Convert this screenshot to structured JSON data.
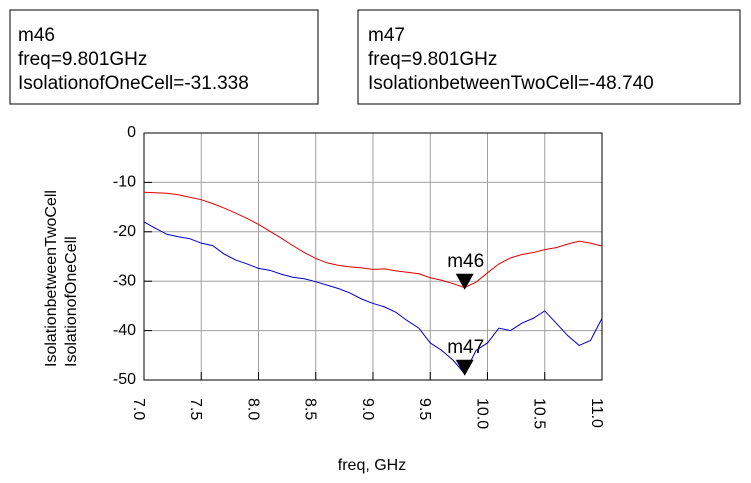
{
  "chart_data": {
    "type": "line",
    "x_label": "freq, GHz",
    "x": [
      7.0,
      7.1,
      7.2,
      7.3,
      7.4,
      7.5,
      7.6,
      7.7,
      7.8,
      7.9,
      8.0,
      8.1,
      8.2,
      8.3,
      8.4,
      8.5,
      8.6,
      8.7,
      8.8,
      8.9,
      9.0,
      9.1,
      9.2,
      9.3,
      9.4,
      9.5,
      9.6,
      9.7,
      9.8,
      9.9,
      10.0,
      10.1,
      10.2,
      10.3,
      10.4,
      10.5,
      10.6,
      10.7,
      10.8,
      10.9,
      11.0
    ],
    "series": [
      {
        "name": "IsolationbetweenTwoCell",
        "color": "#0000cc",
        "values": [
          -18,
          -19.3,
          -20.5,
          -21,
          -21.4,
          -22.3,
          -22.8,
          -24.5,
          -25.7,
          -26.5,
          -27.4,
          -27.8,
          -28.6,
          -29.2,
          -29.5,
          -30.1,
          -30.8,
          -31.5,
          -32.4,
          -33.6,
          -34.5,
          -35.2,
          -36.3,
          -38,
          -39.5,
          -42.5,
          -44,
          -46,
          -48.7,
          -44,
          -42.5,
          -39.5,
          -40,
          -38.5,
          -37.5,
          -36,
          -38.5,
          -41,
          -43,
          -42,
          -37.5
        ]
      },
      {
        "name": "IsolationofOneCell",
        "color": "#e00000",
        "values": [
          -12,
          -12.1,
          -12.2,
          -12.5,
          -13,
          -13.5,
          -14.3,
          -15.2,
          -16.2,
          -17.3,
          -18.5,
          -19.9,
          -21.3,
          -22.8,
          -24.2,
          -25.4,
          -26.3,
          -26.8,
          -27.1,
          -27.3,
          -27.6,
          -27.5,
          -27.9,
          -28.2,
          -28.5,
          -29.3,
          -29.8,
          -30.5,
          -31.3,
          -30.2,
          -28.3,
          -26.5,
          -25.3,
          -24.6,
          -24.2,
          -23.6,
          -23.2,
          -22.5,
          -21.9,
          -22.3,
          -22.9
        ]
      }
    ],
    "xlim": [
      7,
      11
    ],
    "xticks": [
      {
        "value": 7,
        "label": "7.0"
      },
      {
        "value": 7.5,
        "label": "7.5"
      },
      {
        "value": 8,
        "label": "8.0"
      },
      {
        "value": 8.5,
        "label": "8.5"
      },
      {
        "value": 9,
        "label": "9.0"
      },
      {
        "value": 9.5,
        "label": "9.5"
      },
      {
        "value": 10,
        "label": "10.0"
      },
      {
        "value": 10.5,
        "label": "10.5"
      },
      {
        "value": 11,
        "label": "11.0"
      }
    ],
    "ylim": [
      -50,
      0
    ],
    "yticks": [
      0,
      -10,
      -20,
      -30,
      -40,
      -50
    ],
    "grid": true,
    "markers": [
      {
        "label": "m46",
        "x": 9.801,
        "y": -31.338,
        "freq": "freq=9.801GHz",
        "readout": "IsolationofOneCell=-31.338"
      },
      {
        "label": "m47",
        "x": 9.801,
        "y": -48.74,
        "freq": "freq=9.801GHz",
        "readout": "IsolationbetweenTwoCell=-48.740"
      }
    ]
  }
}
